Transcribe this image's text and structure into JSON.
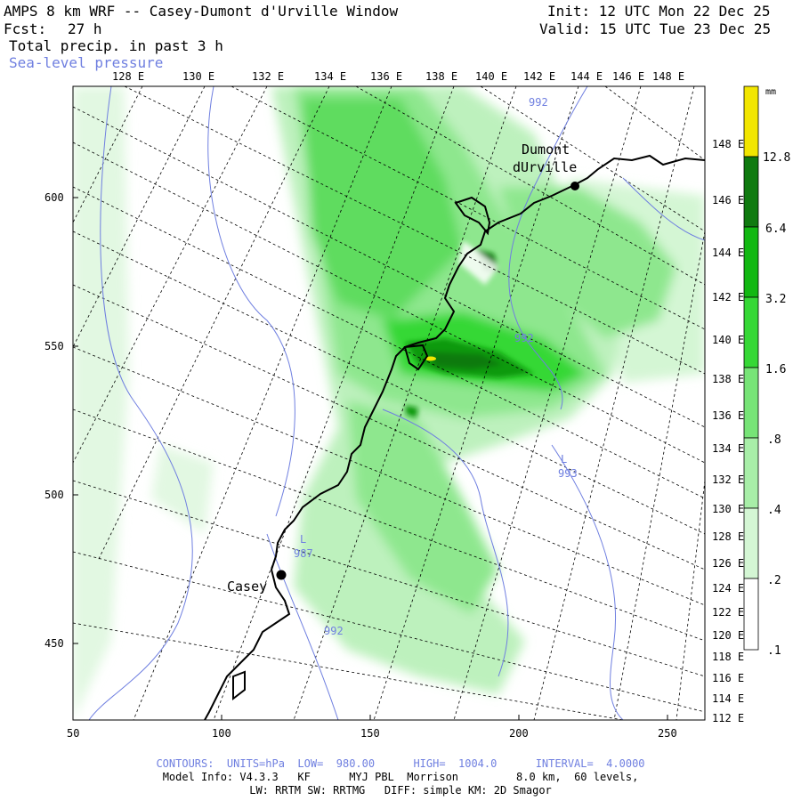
{
  "header": {
    "title": "AMPS 8 km WRF -- Casey-Dumont d'Urville Window",
    "init": "Init: 12 UTC Mon 22 Dec 25",
    "fcst_label": "Fcst:",
    "fcst_value": "27 h",
    "valid": "Valid: 15 UTC Tue 23 Dec 25",
    "field1": "Total precip. in past 3 h",
    "field2": "Sea-level pressure"
  },
  "top_lon_labels": [
    "128 E",
    "130 E",
    "132 E",
    "134 E",
    "136 E",
    "138 E",
    "140 E",
    "142 E",
    "144 E",
    "146 E",
    "148 E"
  ],
  "right_lon_labels": [
    "148 E",
    "146 E",
    "144 E",
    "142 E",
    "140 E",
    "138 E",
    "136 E",
    "134 E",
    "132 E",
    "130 E",
    "128 E",
    "126 E",
    "124 E",
    "122 E",
    "120 E",
    "118 E",
    "116 E",
    "114 E",
    "112 E"
  ],
  "y_axis_ticks": [
    "600",
    "550",
    "500",
    "450"
  ],
  "x_axis_ticks": [
    "50",
    "100",
    "150",
    "200",
    "250"
  ],
  "stations": [
    {
      "name_line1": "Dumont",
      "name_line2": "dUrville"
    },
    {
      "name_line1": "Casey",
      "name_line2": ""
    }
  ],
  "pressure_labels": [
    "992",
    "992",
    "993",
    "987",
    "992"
  ],
  "lows": [
    "L",
    "L"
  ],
  "colorbar": {
    "unit": "mm",
    "labels": [
      "12.8",
      "6.4",
      "3.2",
      "1.6",
      ".8",
      ".4",
      ".2",
      ".1"
    ],
    "colors": [
      "#f2e600",
      "#0f7a0f",
      "#12b812",
      "#36d836",
      "#77e477",
      "#a8eea8",
      "#d4f6d4",
      "#ffffff"
    ]
  },
  "footer": {
    "contours": "CONTOURS:  UNITS=hPa  LOW=  980.00      HIGH=  1004.0      INTERVAL=  4.0000",
    "model_info": "Model Info: V4.3.3   KF      MYJ PBL  Morrison         8.0 km,  60 levels,",
    "physics": "LW: RRTM SW: RRTMG   DIFF: simple KM: 2D Smagor"
  }
}
